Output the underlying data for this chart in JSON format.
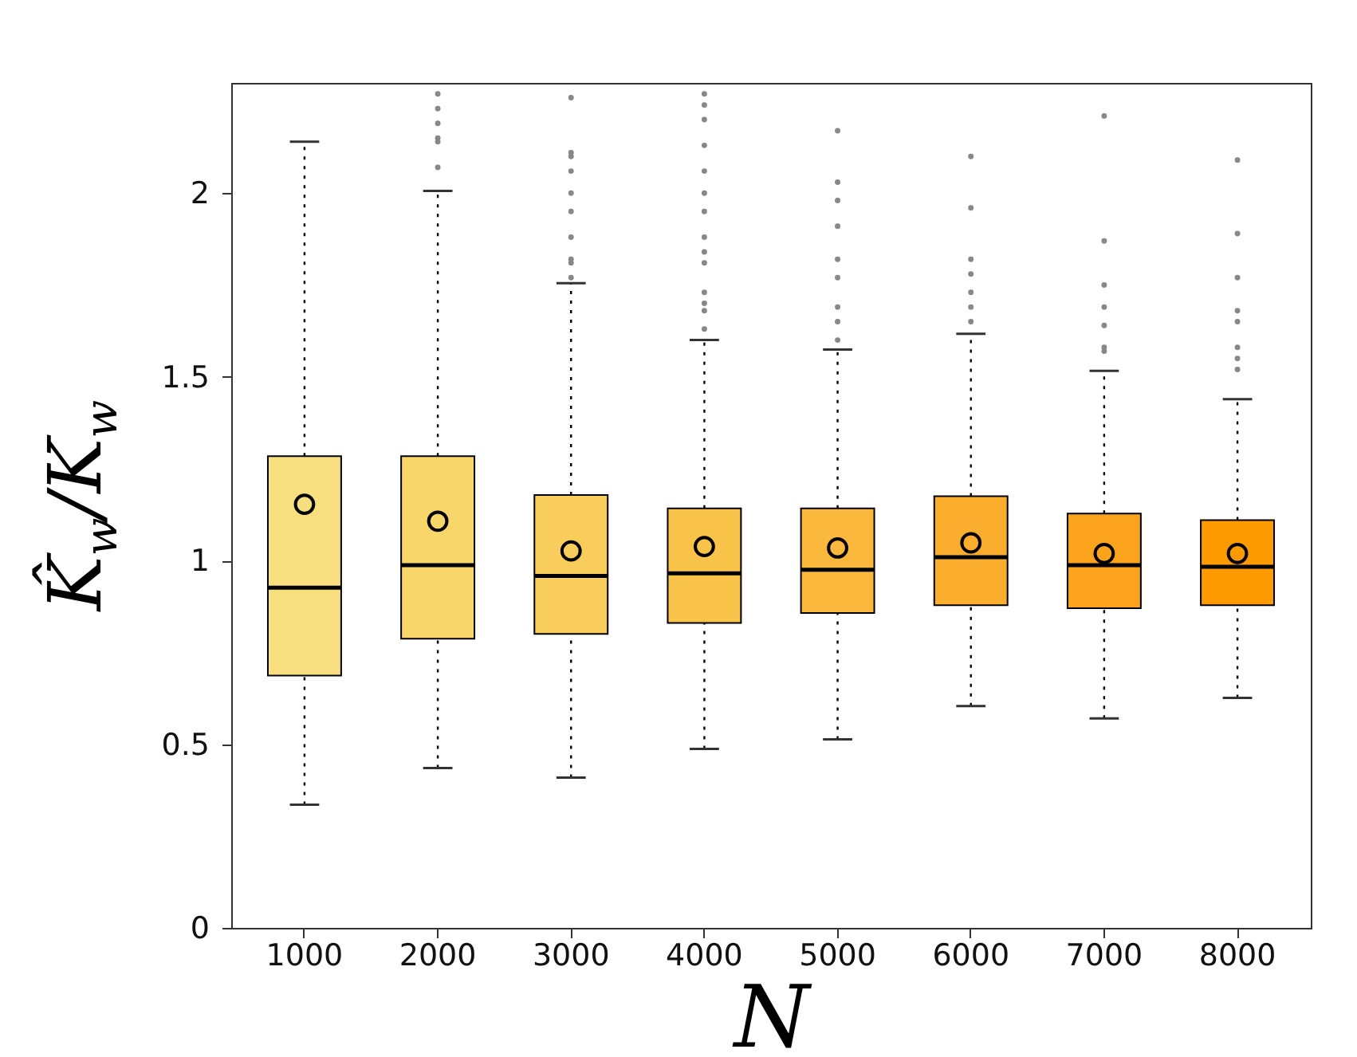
{
  "chart_data": {
    "type": "box",
    "xlabel": "N",
    "ylabel": "K̂$_{w}$/K$_{w}$",
    "categories": [
      "1000",
      "2000",
      "3000",
      "4000",
      "5000",
      "6000",
      "7000",
      "8000"
    ],
    "colors": [
      "#f7df80",
      "#f8d66a",
      "#f8cd5b",
      "#f9c34a",
      "#fab93c",
      "#fbae2e",
      "#fca31d",
      "#fd9a00"
    ],
    "boxes": [
      {
        "low": 0.335,
        "q1": 0.687,
        "median": 0.926,
        "q3": 1.284,
        "high": 2.14,
        "mean": 1.153
      },
      {
        "low": 0.435,
        "q1": 0.787,
        "median": 0.987,
        "q3": 1.284,
        "high": 2.006,
        "mean": 1.107,
        "outliers": [
          2.27,
          2.23,
          2.19,
          2.15,
          2.14,
          2.07
        ]
      },
      {
        "low": 0.409,
        "q1": 0.8,
        "median": 0.958,
        "q3": 1.178,
        "high": 1.755,
        "mean": 1.026,
        "outliers": [
          2.26,
          2.11,
          2.1,
          2.06,
          2.0,
          1.95,
          1.88,
          1.82,
          1.81,
          1.77
        ]
      },
      {
        "low": 0.487,
        "q1": 0.83,
        "median": 0.965,
        "q3": 1.142,
        "high": 1.6,
        "mean": 1.038,
        "outliers": [
          2.27,
          2.24,
          2.2,
          2.13,
          2.06,
          2.0,
          1.95,
          1.88,
          1.84,
          1.81,
          1.73,
          1.7,
          1.68,
          1.63
        ]
      },
      {
        "low": 0.513,
        "q1": 0.857,
        "median": 0.975,
        "q3": 1.142,
        "high": 1.574,
        "mean": 1.034,
        "outliers": [
          2.17,
          2.03,
          1.98,
          1.91,
          1.82,
          1.77,
          1.69,
          1.65,
          1.6
        ]
      },
      {
        "low": 0.604,
        "q1": 0.878,
        "median": 1.009,
        "q3": 1.175,
        "high": 1.617,
        "mean": 1.048,
        "outliers": [
          2.1,
          1.96,
          1.82,
          1.78,
          1.73,
          1.69,
          1.65
        ]
      },
      {
        "low": 0.57,
        "q1": 0.87,
        "median": 0.987,
        "q3": 1.128,
        "high": 1.516,
        "mean": 1.019,
        "outliers": [
          2.21,
          1.87,
          1.75,
          1.69,
          1.64,
          1.58,
          1.57
        ]
      },
      {
        "low": 0.626,
        "q1": 0.878,
        "median": 0.983,
        "q3": 1.11,
        "high": 1.439,
        "mean": 1.019,
        "outliers": [
          2.09,
          1.89,
          1.77,
          1.68,
          1.65,
          1.58,
          1.55,
          1.52
        ]
      }
    ],
    "ylim": [
      0,
      2.3
    ],
    "yticks": [
      0,
      0.5,
      1,
      1.5,
      2
    ]
  }
}
